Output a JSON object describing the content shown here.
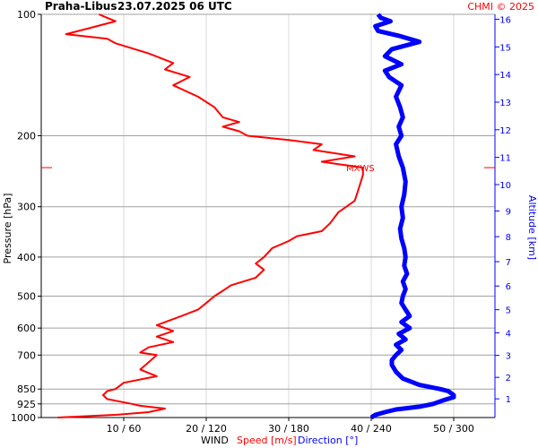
{
  "header": {
    "station": "Praha-Libus",
    "datetime": "23.07.2025 06 UTC",
    "credit": "CHMI © 2025"
  },
  "footer": {
    "wind": "WIND",
    "speed": "Speed [m/s]",
    "direction": "Direction [°]"
  },
  "colors": {
    "speed": "#ff0000",
    "direction": "#0000ff",
    "grid_major": "#a0a0a0",
    "grid_minor": "#d8d8d8",
    "text": "#000000"
  },
  "chart_data": {
    "type": "line",
    "title": "",
    "ylabel_left": "Pressure [hPa]",
    "ylabel_right": "Altitude [km]",
    "yscale": "log",
    "ylim": [
      1000,
      100
    ],
    "pressure_ticks": [
      "100",
      "200",
      "300",
      "400",
      "500",
      "600",
      "700",
      "850",
      "925",
      "1000"
    ],
    "altitude_ticks": [
      "1",
      "2",
      "3",
      "4",
      "5",
      "6",
      "7",
      "8",
      "9",
      "10",
      "11",
      "12",
      "13",
      "14",
      "15",
      "16"
    ],
    "x_ticks": [
      "10 / 60",
      "20 / 120",
      "30 / 180",
      "40 / 240",
      "50 / 300"
    ],
    "speed_xlim": [
      0,
      55
    ],
    "direction_xlim": [
      0,
      330
    ],
    "max_wind_label": "MXWS",
    "max_wind_pressure": 240,
    "series": [
      {
        "name": "Speed [m/s]",
        "units": "m/s",
        "points": [
          [
            1000,
            2
          ],
          [
            985,
            9
          ],
          [
            970,
            13
          ],
          [
            950,
            15
          ],
          [
            935,
            12
          ],
          [
            925,
            11
          ],
          [
            900,
            8
          ],
          [
            880,
            7.5
          ],
          [
            860,
            8
          ],
          [
            850,
            9
          ],
          [
            820,
            10
          ],
          [
            790,
            14
          ],
          [
            760,
            12
          ],
          [
            730,
            13
          ],
          [
            700,
            14
          ],
          [
            690,
            12
          ],
          [
            670,
            13
          ],
          [
            650,
            16
          ],
          [
            630,
            14
          ],
          [
            610,
            16
          ],
          [
            590,
            14
          ],
          [
            560,
            17
          ],
          [
            540,
            19
          ],
          [
            520,
            20
          ],
          [
            500,
            21
          ],
          [
            485,
            22
          ],
          [
            470,
            23
          ],
          [
            450,
            26
          ],
          [
            430,
            27
          ],
          [
            415,
            26
          ],
          [
            400,
            27
          ],
          [
            380,
            28
          ],
          [
            365,
            30
          ],
          [
            355,
            31
          ],
          [
            345,
            34
          ],
          [
            330,
            35
          ],
          [
            310,
            36
          ],
          [
            290,
            38
          ],
          [
            270,
            38.5
          ],
          [
            250,
            39
          ],
          [
            240,
            39
          ],
          [
            232,
            34
          ],
          [
            225,
            38
          ],
          [
            217,
            33
          ],
          [
            210,
            34
          ],
          [
            205,
            30
          ],
          [
            200,
            25
          ],
          [
            195,
            24
          ],
          [
            190,
            22
          ],
          [
            185,
            24
          ],
          [
            180,
            22
          ],
          [
            170,
            21
          ],
          [
            160,
            19
          ],
          [
            150,
            16
          ],
          [
            143,
            18
          ],
          [
            137,
            15
          ],
          [
            132,
            16
          ],
          [
            125,
            13
          ],
          [
            118,
            9
          ],
          [
            115,
            8
          ],
          [
            112,
            3
          ],
          [
            108,
            6
          ],
          [
            104,
            9
          ],
          [
            102,
            8
          ],
          [
            100,
            7
          ]
        ]
      },
      {
        "name": "Direction [°]",
        "units": "°",
        "points": [
          [
            1000,
            240
          ],
          [
            985,
            243
          ],
          [
            970,
            250
          ],
          [
            955,
            258
          ],
          [
            940,
            275
          ],
          [
            925,
            285
          ],
          [
            905,
            293
          ],
          [
            890,
            300
          ],
          [
            880,
            300
          ],
          [
            860,
            296
          ],
          [
            850,
            290
          ],
          [
            830,
            275
          ],
          [
            800,
            263
          ],
          [
            770,
            258
          ],
          [
            740,
            255
          ],
          [
            720,
            255
          ],
          [
            700,
            258
          ],
          [
            680,
            262
          ],
          [
            660,
            258
          ],
          [
            640,
            265
          ],
          [
            620,
            260
          ],
          [
            600,
            268
          ],
          [
            580,
            262
          ],
          [
            560,
            268
          ],
          [
            540,
            265
          ],
          [
            520,
            262
          ],
          [
            500,
            263
          ],
          [
            480,
            265
          ],
          [
            460,
            263
          ],
          [
            440,
            266
          ],
          [
            420,
            264
          ],
          [
            400,
            265
          ],
          [
            380,
            264
          ],
          [
            360,
            262
          ],
          [
            340,
            261
          ],
          [
            320,
            263
          ],
          [
            300,
            262
          ],
          [
            280,
            264
          ],
          [
            260,
            265
          ],
          [
            240,
            263
          ],
          [
            225,
            260
          ],
          [
            210,
            258
          ],
          [
            200,
            262
          ],
          [
            190,
            260
          ],
          [
            180,
            263
          ],
          [
            170,
            261
          ],
          [
            160,
            258
          ],
          [
            150,
            262
          ],
          [
            143,
            253
          ],
          [
            138,
            250
          ],
          [
            133,
            262
          ],
          [
            127,
            250
          ],
          [
            122,
            255
          ],
          [
            117,
            275
          ],
          [
            113,
            260
          ],
          [
            110,
            245
          ],
          [
            107,
            243
          ],
          [
            104,
            254
          ],
          [
            102,
            247
          ],
          [
            100,
            245
          ]
        ]
      }
    ]
  }
}
